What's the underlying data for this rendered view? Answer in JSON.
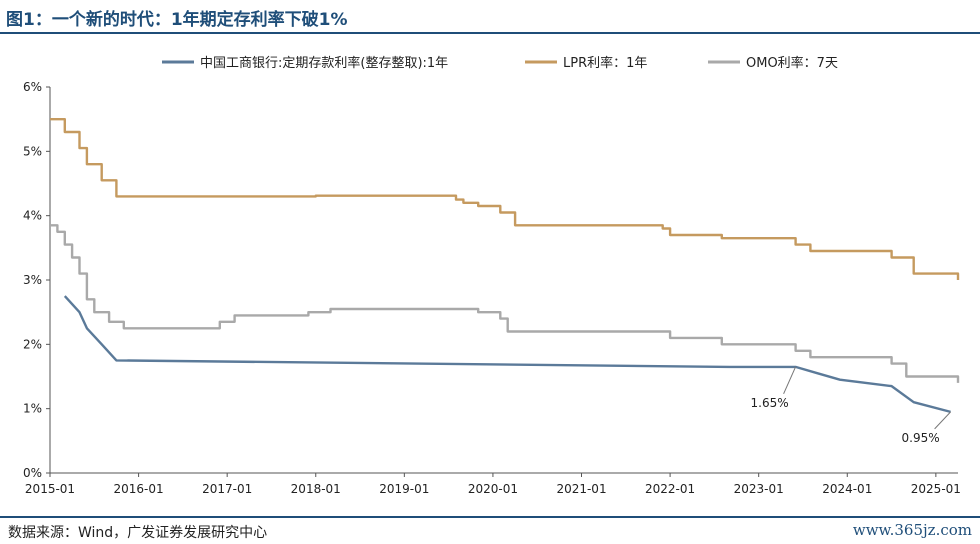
{
  "header": {
    "title": "图1：一个新的时代：1年期定存利率下破1%"
  },
  "footer": {
    "source": "数据来源：Wind，广发证券发展研究中心",
    "watermark": "www.365jz.com"
  },
  "colors": {
    "accent": "#1f4e79",
    "deposit": "#5b7a99",
    "lpr": "#c59a5f",
    "omo": "#a9a9a9"
  },
  "chart_data": {
    "type": "line",
    "title": "",
    "xlabel": "",
    "ylabel": "",
    "x_ticks": [
      "2015-01",
      "2016-01",
      "2017-01",
      "2018-01",
      "2019-01",
      "2020-01",
      "2021-01",
      "2022-01",
      "2023-01",
      "2024-01",
      "2025-01"
    ],
    "y_ticks": [
      "0%",
      "1%",
      "2%",
      "3%",
      "4%",
      "5%",
      "6%"
    ],
    "ylim": [
      0,
      6
    ],
    "xlim": [
      "2015-01",
      "2025-04"
    ],
    "grid": false,
    "legend": "top",
    "series": [
      {
        "name": "中国工商银行:定期存款利率(整存整取):1年",
        "color": "#5b7a99",
        "points": [
          [
            "2015-03",
            2.75
          ],
          [
            "2015-05",
            2.5
          ],
          [
            "2015-06",
            2.25
          ],
          [
            "2015-08",
            2.0
          ],
          [
            "2015-10",
            1.75
          ],
          [
            "2022-09",
            1.65
          ],
          [
            "2023-06",
            1.65
          ],
          [
            "2023-09",
            1.55
          ],
          [
            "2023-12",
            1.45
          ],
          [
            "2024-07",
            1.35
          ],
          [
            "2024-10",
            1.1
          ],
          [
            "2025-03",
            0.95
          ]
        ]
      },
      {
        "name": "LPR利率：1年",
        "color": "#c59a5f",
        "steps": [
          [
            "2015-01",
            5.5
          ],
          [
            "2015-03",
            5.3
          ],
          [
            "2015-05",
            5.05
          ],
          [
            "2015-06",
            4.8
          ],
          [
            "2015-08",
            4.55
          ],
          [
            "2015-10",
            4.3
          ],
          [
            "2018-01",
            4.31
          ],
          [
            "2019-08",
            4.25
          ],
          [
            "2019-09",
            4.2
          ],
          [
            "2019-11",
            4.15
          ],
          [
            "2020-02",
            4.05
          ],
          [
            "2020-04",
            3.85
          ],
          [
            "2021-12",
            3.8
          ],
          [
            "2022-01",
            3.7
          ],
          [
            "2022-08",
            3.65
          ],
          [
            "2023-06",
            3.55
          ],
          [
            "2023-08",
            3.45
          ],
          [
            "2024-07",
            3.35
          ],
          [
            "2024-10",
            3.1
          ],
          [
            "2025-03",
            3.1
          ],
          [
            "2025-04",
            3.0
          ]
        ]
      },
      {
        "name": "OMO利率：7天",
        "color": "#a9a9a9",
        "steps": [
          [
            "2015-01",
            3.85
          ],
          [
            "2015-02",
            3.75
          ],
          [
            "2015-03",
            3.55
          ],
          [
            "2015-04",
            3.35
          ],
          [
            "2015-05",
            3.1
          ],
          [
            "2015-06",
            2.7
          ],
          [
            "2015-07",
            2.5
          ],
          [
            "2015-09",
            2.35
          ],
          [
            "2015-11",
            2.25
          ],
          [
            "2016-12",
            2.35
          ],
          [
            "2017-02",
            2.45
          ],
          [
            "2017-12",
            2.5
          ],
          [
            "2018-03",
            2.55
          ],
          [
            "2019-08",
            2.55
          ],
          [
            "2019-11",
            2.5
          ],
          [
            "2020-02",
            2.4
          ],
          [
            "2020-03",
            2.2
          ],
          [
            "2022-01",
            2.1
          ],
          [
            "2022-08",
            2.0
          ],
          [
            "2023-06",
            1.9
          ],
          [
            "2023-08",
            1.8
          ],
          [
            "2024-07",
            1.7
          ],
          [
            "2024-09",
            1.5
          ],
          [
            "2025-03",
            1.5
          ],
          [
            "2025-04",
            1.4
          ]
        ]
      }
    ],
    "annotations": [
      {
        "text": "1.65%",
        "x": "2023-06",
        "y": 1.65
      },
      {
        "text": "0.95%",
        "x": "2025-03",
        "y": 0.95
      }
    ]
  }
}
